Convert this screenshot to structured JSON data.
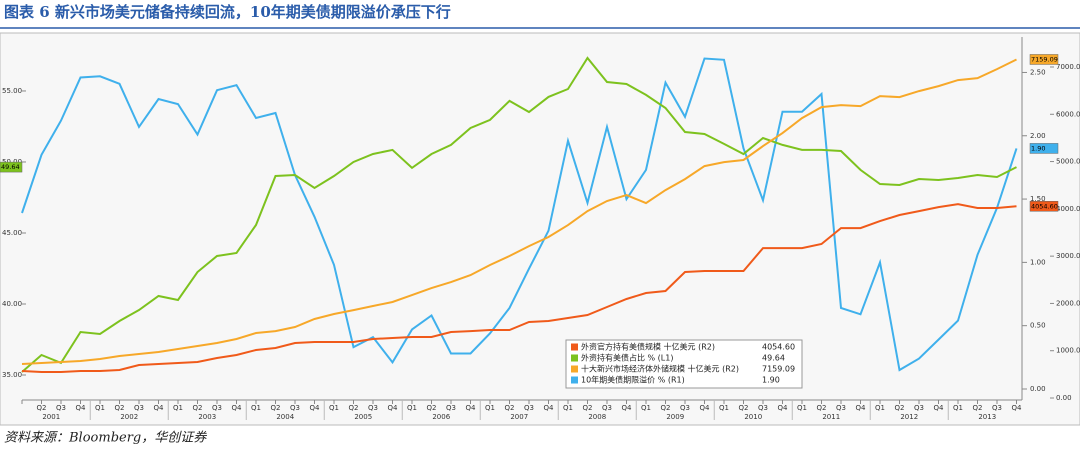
{
  "chart_data": {
    "type": "line",
    "title": "图表 6 新兴市场美元储备持续回流，10年期美债期限溢价承压下行",
    "source": "资料来源：Bloomberg，华创证券",
    "categories": [
      null,
      "Q2",
      "Q3",
      "Q4",
      "Q1",
      "Q2",
      "Q3",
      "Q4",
      "Q1",
      "Q2",
      "Q3",
      "Q4",
      "Q1",
      "Q2",
      "Q3",
      "Q4",
      "Q1",
      "Q2",
      "Q3",
      "Q4",
      "Q1",
      "Q2",
      "Q3",
      "Q4",
      "Q1",
      "Q2",
      "Q3",
      "Q4",
      "Q1",
      "Q2",
      "Q3",
      "Q4",
      "Q1",
      "Q2",
      "Q3",
      "Q4",
      "Q1",
      "Q2",
      "Q3",
      "Q4",
      "Q1",
      "Q2",
      "Q3",
      "Q4",
      "Q1",
      "Q2",
      "Q3",
      "Q4",
      "Q1",
      "Q2",
      "Q3",
      "Q4"
    ],
    "years": [
      "2001",
      "2002",
      "2003",
      "2004",
      "2005",
      "2006",
      "2007",
      "2008",
      "2009",
      "2010",
      "2011",
      "2012",
      "2013"
    ],
    "ylim": [
      33.24,
      58.8
    ],
    "yticks": [
      {
        "value": 35,
        "label": "35.00"
      },
      {
        "value": 40,
        "label": "40.00"
      },
      {
        "value": 45,
        "label": "45.00"
      },
      {
        "value": 50,
        "label": "50.00"
      },
      {
        "value": 55,
        "label": "55.00"
      }
    ],
    "y2lim": [
      -0.087,
      2.78
    ],
    "y2ticks": [
      {
        "value": 0,
        "label": "0.00"
      },
      {
        "value": 0.5,
        "label": "0.50"
      },
      {
        "value": 1,
        "label": "1.00"
      },
      {
        "value": 1.5,
        "label": "1.50"
      },
      {
        "value": 2,
        "label": "2.00"
      },
      {
        "value": 2.5,
        "label": "2.50"
      }
    ],
    "y3lim": [
      -42,
      7634
    ],
    "y3ticks": [
      {
        "value": 0,
        "label": "0.00"
      },
      {
        "value": 1000,
        "label": "1000.00"
      },
      {
        "value": 2000,
        "label": "2000.00"
      },
      {
        "value": 3000,
        "label": "3000.00"
      },
      {
        "value": 4000,
        "label": "4000.00"
      },
      {
        "value": 5000,
        "label": "5000.00"
      },
      {
        "value": 6000,
        "label": "6000.00"
      },
      {
        "value": 7000,
        "label": "7000.00"
      }
    ],
    "series": [
      {
        "name": "外资官方持有美债规模 十亿美元 (R2)",
        "color": "#f05a1a",
        "axis": "y3",
        "last_value_label": "4054.60",
        "values": [
          571,
          550,
          550,
          571,
          571,
          592,
          698,
          719,
          740,
          761,
          846,
          909,
          1015,
          1057,
          1163,
          1184,
          1184,
          1184,
          1247,
          1268,
          1290,
          1290,
          1395,
          1416,
          1438,
          1438,
          1607,
          1628,
          1691,
          1755,
          1924,
          2093,
          2220,
          2262,
          2664,
          2685,
          2685,
          2685,
          3171,
          3171,
          3171,
          3256,
          3594,
          3594,
          3742,
          3869,
          3953,
          4038,
          4101,
          4017,
          4017,
          4054.6
        ]
      },
      {
        "name": "外资持有美债占比 % (L1)",
        "color": "#7dc21e",
        "axis": "y",
        "last_value_label": "49.64",
        "values": [
          35.21,
          36.41,
          35.85,
          38.03,
          37.89,
          38.8,
          39.58,
          40.56,
          40.28,
          42.25,
          43.38,
          43.59,
          45.56,
          49.01,
          49.08,
          48.17,
          49.01,
          50,
          50.56,
          50.85,
          49.58,
          50.56,
          51.2,
          52.39,
          52.96,
          54.3,
          53.52,
          54.58,
          55.14,
          57.32,
          55.63,
          55.49,
          54.72,
          53.8,
          52.11,
          51.97,
          51.27,
          50.56,
          51.69,
          51.2,
          50.85,
          50.85,
          50.77,
          49.44,
          48.45,
          48.38,
          48.8,
          48.73,
          48.87,
          49.08,
          48.94,
          49.64
        ]
      },
      {
        "name": "十大新兴市场经济体外储规模 十亿美元 (R2)",
        "color": "#f7a829",
        "axis": "y3",
        "last_value_label": "7159.09",
        "values": [
          719,
          740,
          761,
          782,
          824,
          888,
          930,
          972,
          1036,
          1099,
          1163,
          1247,
          1374,
          1416,
          1501,
          1670,
          1776,
          1860,
          1945,
          2030,
          2177,
          2325,
          2452,
          2600,
          2812,
          3002,
          3213,
          3404,
          3657,
          3953,
          4165,
          4291,
          4122,
          4397,
          4630,
          4905,
          4989,
          5032,
          5327,
          5602,
          5919,
          6152,
          6194,
          6173,
          6385,
          6363,
          6490,
          6596,
          6723,
          6765,
          6955,
          7159.09
        ]
      },
      {
        "name": "10年期美债期限溢价 % (R1)",
        "color": "#3fb0ec",
        "axis": "y2",
        "last_value_label": "1.90",
        "values": [
          1.39,
          1.85,
          2.12,
          2.46,
          2.47,
          2.41,
          2.07,
          2.29,
          2.25,
          2.01,
          2.36,
          2.4,
          2.14,
          2.18,
          1.69,
          1.36,
          0.98,
          0.33,
          0.41,
          0.21,
          0.47,
          0.58,
          0.28,
          0.28,
          0.44,
          0.64,
          0.95,
          1.25,
          1.96,
          1.47,
          2.07,
          1.5,
          1.73,
          2.42,
          2.15,
          2.61,
          2.6,
          1.9,
          1.49,
          2.19,
          2.19,
          2.33,
          0.64,
          0.59,
          1,
          0.15,
          0.24,
          0.39,
          0.54,
          1.06,
          1.43,
          1.9
        ]
      }
    ]
  }
}
